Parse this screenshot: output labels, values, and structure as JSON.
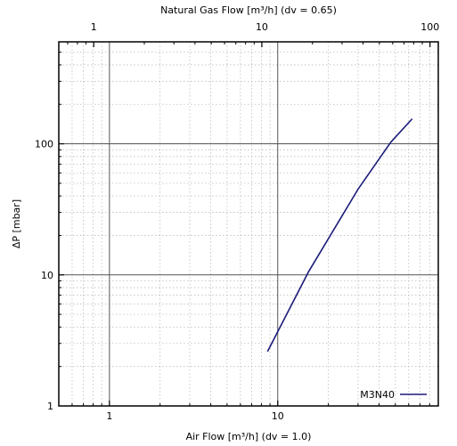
{
  "chart_data": {
    "type": "line",
    "title": "",
    "x_top_label": "Natural Gas Flow [m³/h] (dv = 0.65)",
    "xlabel": "Air Flow [m³/h] (dv = 1.0)",
    "ylabel": "ΔP [mbar]",
    "x_scale": "log",
    "y_scale": "log",
    "xlim": [
      0.5,
      90
    ],
    "ylim": [
      1,
      600
    ],
    "x_top_lim": [
      0.62,
      112
    ],
    "x_ticks": [
      1,
      10
    ],
    "x_tick_labels": [
      "1",
      "10"
    ],
    "x_top_ticks": [
      1,
      10,
      100
    ],
    "x_top_tick_labels": [
      "1",
      "10",
      "100"
    ],
    "y_ticks": [
      1,
      10,
      100
    ],
    "y_tick_labels": [
      "1",
      "10",
      "100"
    ],
    "grid": true,
    "legend_position": "bottom-right",
    "series": [
      {
        "name": "M3N40",
        "color": "#1a1a7a",
        "x": [
          8.7,
          15.2,
          30.0,
          47.0,
          63.0
        ],
        "y": [
          2.6,
          10.5,
          45.0,
          103.0,
          155.0
        ]
      }
    ]
  }
}
